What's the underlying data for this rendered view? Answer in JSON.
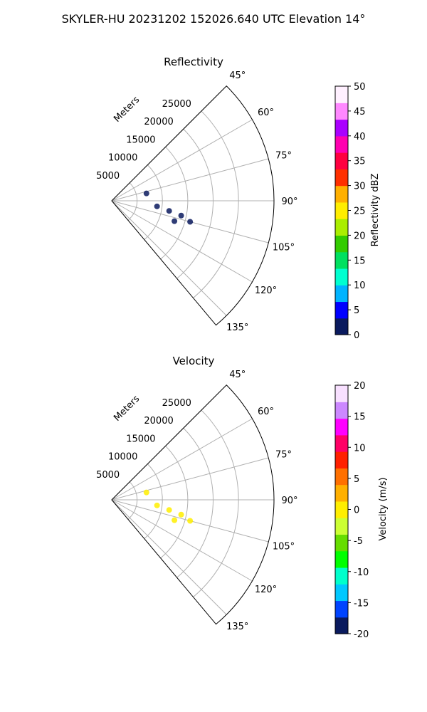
{
  "suptitle": "SKYLER-HU  20231202  152026.640 UTC Elevation 14°",
  "chart_data": [
    {
      "type": "polar-sector",
      "title": "Reflectivity",
      "radial_label": "Meters",
      "range_rings": [
        5000,
        10000,
        15000,
        20000,
        25000
      ],
      "rmax": 32000,
      "azimuth_range_deg": [
        45,
        140
      ],
      "azimuth_ticks": [
        "45°",
        "60°",
        "75°",
        "90°",
        "105°",
        "120°",
        "135°"
      ],
      "colorbar": {
        "label": "Reflectivity dBZ",
        "ticks": [
          "0",
          "5",
          "10",
          "15",
          "20",
          "25",
          "30",
          "35",
          "40",
          "45",
          "50"
        ],
        "vmin": 0,
        "vmax": 50,
        "colors": [
          "#0a1a5e",
          "#0000ff",
          "#00b4ff",
          "#00ffd0",
          "#00e060",
          "#33cc00",
          "#aaee00",
          "#ffee00",
          "#ffb000",
          "#ff3000",
          "#ff0040",
          "#ff00b0",
          "#aa00ff",
          "#ff88ff",
          "#fff0ff"
        ]
      },
      "echoes": [
        {
          "azimuth": 97,
          "range_m": 9000,
          "value": 0
        },
        {
          "azimuth": 100,
          "range_m": 11500,
          "value": 0
        },
        {
          "azimuth": 102,
          "range_m": 14000,
          "value": 0
        },
        {
          "azimuth": 105,
          "range_m": 16000,
          "value": 0
        },
        {
          "azimuth": 108,
          "range_m": 13000,
          "value": 0
        },
        {
          "azimuth": 78,
          "range_m": 7000,
          "value": 0
        }
      ]
    },
    {
      "type": "polar-sector",
      "title": "Velocity",
      "radial_label": "Meters",
      "range_rings": [
        5000,
        10000,
        15000,
        20000,
        25000
      ],
      "rmax": 32000,
      "azimuth_range_deg": [
        45,
        140
      ],
      "azimuth_ticks": [
        "45°",
        "60°",
        "75°",
        "90°",
        "105°",
        "120°",
        "135°"
      ],
      "colorbar": {
        "label": "Velocity (m/s)",
        "ticks": [
          "-20",
          "-15",
          "-10",
          "-5",
          "0",
          "5",
          "10",
          "15",
          "20"
        ],
        "vmin": -20,
        "vmax": 20,
        "colors": [
          "#0a1a5e",
          "#0044ff",
          "#00c8ff",
          "#00ffcc",
          "#00ff00",
          "#66dd00",
          "#ccff33",
          "#ffee00",
          "#ffb000",
          "#ff7000",
          "#ff2000",
          "#ff0066",
          "#ff00ff",
          "#cc88ff",
          "#f8e0ff"
        ]
      },
      "echoes": [
        {
          "azimuth": 97,
          "range_m": 9000,
          "value": 0
        },
        {
          "azimuth": 100,
          "range_m": 11500,
          "value": 0
        },
        {
          "azimuth": 102,
          "range_m": 14000,
          "value": 0
        },
        {
          "azimuth": 105,
          "range_m": 16000,
          "value": 0
        },
        {
          "azimuth": 108,
          "range_m": 13000,
          "value": 0
        },
        {
          "azimuth": 78,
          "range_m": 7000,
          "value": 0
        }
      ]
    }
  ]
}
